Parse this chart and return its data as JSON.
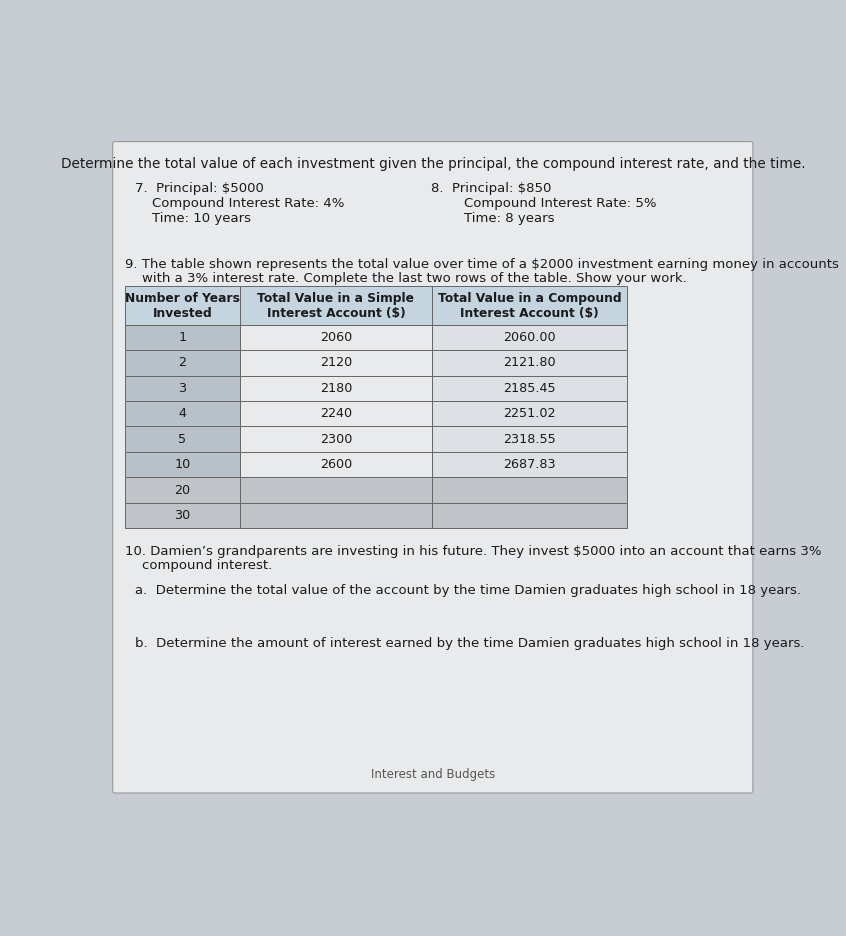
{
  "background_color": "#c8cdd4",
  "paper_color": "#e8eaec",
  "title_text": "Determine the total value of each investment given the principal, the compound interest rate, and the time.",
  "p7_line1": "7.  Principal: $5000",
  "p7_line2": "    Compound Interest Rate: 4%",
  "p7_line3": "    Time: 10 years",
  "p8_line1": "8.  Principal: $850",
  "p8_line2": "    Compound Interest Rate: 5%",
  "p8_line3": "    Time: 8 years",
  "problem9_line1": "9. The table shown represents the total value over time of a $2000 investment earning money in accounts",
  "problem9_line2": "    with a 3% interest rate. Complete the last two rows of the table. Show your work.",
  "table_headers": [
    "Number of Years\nInvested",
    "Total Value in a Simple\nInterest Account ($)",
    "Total Value in a Compound\nInterest Account ($)"
  ],
  "table_col1": [
    "1",
    "2",
    "3",
    "4",
    "5",
    "10",
    "20",
    "30"
  ],
  "table_col2": [
    "2060",
    "2120",
    "2180",
    "2240",
    "2300",
    "2600",
    "",
    ""
  ],
  "table_col3": [
    "2060.00",
    "2121.80",
    "2185.45",
    "2251.02",
    "2318.55",
    "2687.83",
    "",
    ""
  ],
  "problem10_line1": "10. Damien’s grandparents are investing in his future. They invest $5000 into an account that earns 3%",
  "problem10_line2": "    compound interest.",
  "problem10a": "a.  Determine the total value of the account by the time Damien graduates high school in 18 years.",
  "problem10b": "b.  Determine the amount of interest earned by the time Damien graduates high school in 18 years.",
  "footer_text": "Interest and Budgets",
  "header_bg": "#c5d5e0",
  "col1_bg": "#b8c0c8",
  "row_bg_light": "#dde0e4",
  "row_bg_white": "#e8eaec",
  "blank_row_bg": "#c0c4c8",
  "text_color": "#1a1a1a",
  "font_size_title": 9.8,
  "font_size_body": 9.5,
  "font_size_table_header": 8.8,
  "font_size_table_body": 9.2
}
